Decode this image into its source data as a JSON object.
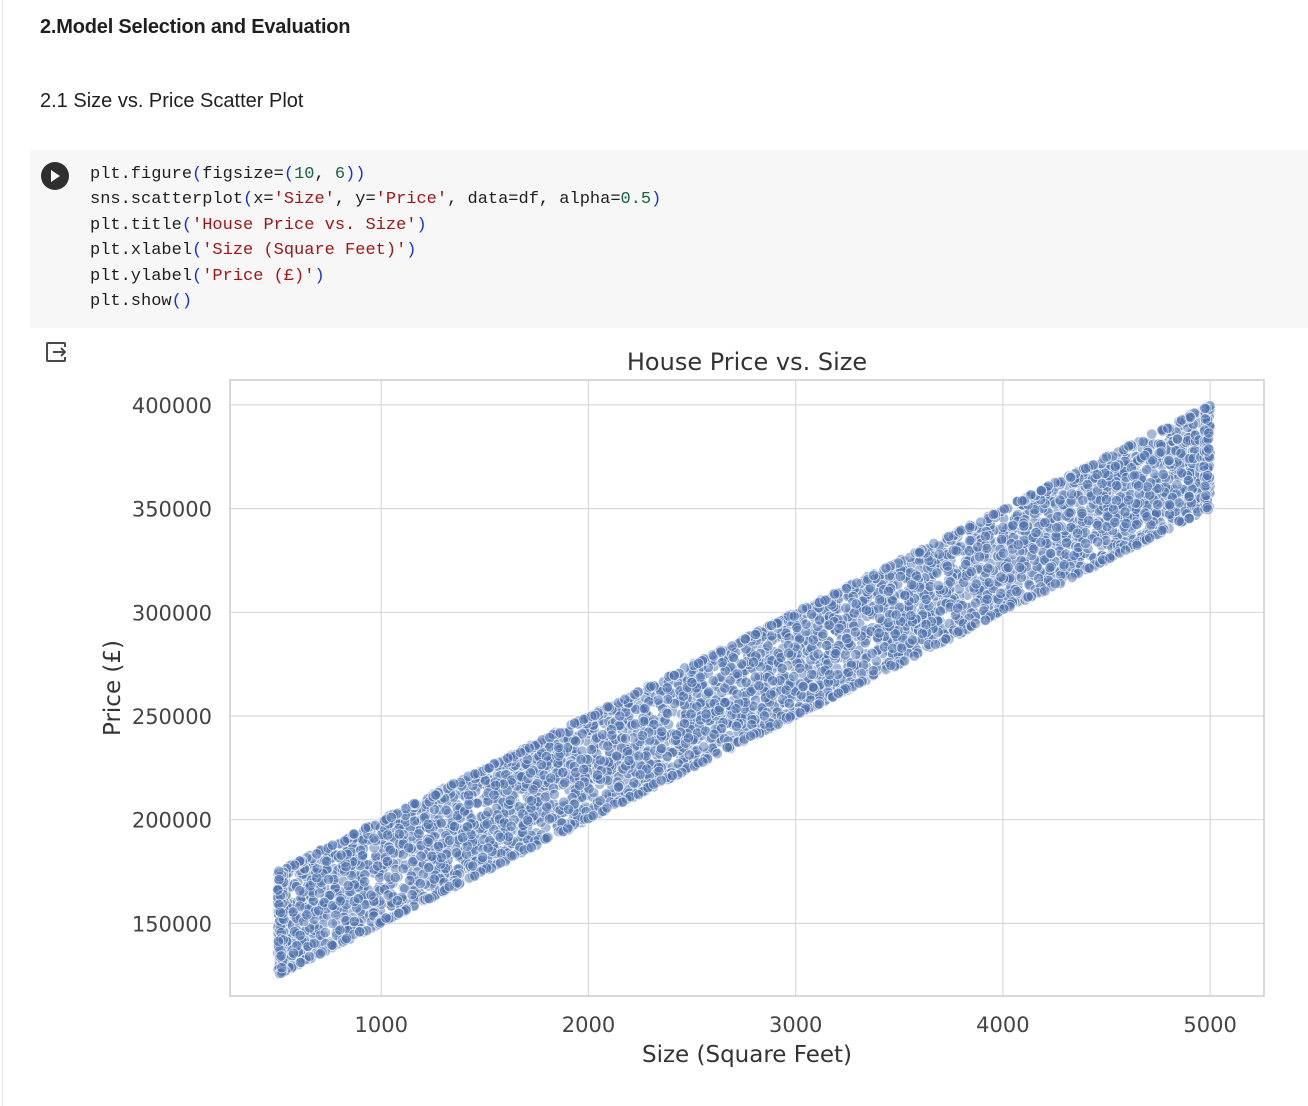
{
  "headings": {
    "section": "2.Model Selection and Evaluation",
    "subsection": "2.1 Size vs. Price Scatter Plot"
  },
  "code_cell": {
    "run_icon": "play-icon",
    "output_icon": "output-redirect-icon",
    "lines": [
      [
        {
          "t": "plt.figure",
          "c": ""
        },
        {
          "t": "(",
          "c": "par"
        },
        {
          "t": "figsize=",
          "c": ""
        },
        {
          "t": "(",
          "c": "par"
        },
        {
          "t": "10",
          "c": "num"
        },
        {
          "t": ", ",
          "c": ""
        },
        {
          "t": "6",
          "c": "num"
        },
        {
          "t": "))",
          "c": "par"
        }
      ],
      [
        {
          "t": "sns.scatterplot",
          "c": ""
        },
        {
          "t": "(",
          "c": "par"
        },
        {
          "t": "x=",
          "c": ""
        },
        {
          "t": "'Size'",
          "c": "str"
        },
        {
          "t": ", y=",
          "c": ""
        },
        {
          "t": "'Price'",
          "c": "str"
        },
        {
          "t": ", data=df, alpha=",
          "c": ""
        },
        {
          "t": "0.5",
          "c": "num"
        },
        {
          "t": ")",
          "c": "par"
        }
      ],
      [
        {
          "t": "plt.title",
          "c": ""
        },
        {
          "t": "(",
          "c": "par"
        },
        {
          "t": "'House Price vs. Size'",
          "c": "str"
        },
        {
          "t": ")",
          "c": "par"
        }
      ],
      [
        {
          "t": "plt.xlabel",
          "c": ""
        },
        {
          "t": "(",
          "c": "par"
        },
        {
          "t": "'Size (Square Feet)'",
          "c": "str"
        },
        {
          "t": ")",
          "c": "par"
        }
      ],
      [
        {
          "t": "plt.ylabel",
          "c": ""
        },
        {
          "t": "(",
          "c": "par"
        },
        {
          "t": "'Price (£)'",
          "c": "str"
        },
        {
          "t": ")",
          "c": "par"
        }
      ],
      [
        {
          "t": "plt.show",
          "c": ""
        },
        {
          "t": "()",
          "c": "par"
        }
      ]
    ]
  },
  "chart_data": {
    "type": "scatter",
    "title": "House Price vs. Size",
    "xlabel": "Size (Square Feet)",
    "ylabel": "Price (£)",
    "xlim": [
      270,
      5260
    ],
    "ylim": [
      115000,
      412000
    ],
    "xticks": [
      1000,
      2000,
      3000,
      4000,
      5000
    ],
    "yticks": [
      150000,
      200000,
      250000,
      300000,
      350000,
      400000
    ],
    "grid": true,
    "point_color": "#4c72b0",
    "alpha": 0.5,
    "band": {
      "x_range": [
        500,
        5000
      ],
      "price_per_sqft": 50,
      "base_price_range": [
        100000,
        150000
      ]
    }
  }
}
